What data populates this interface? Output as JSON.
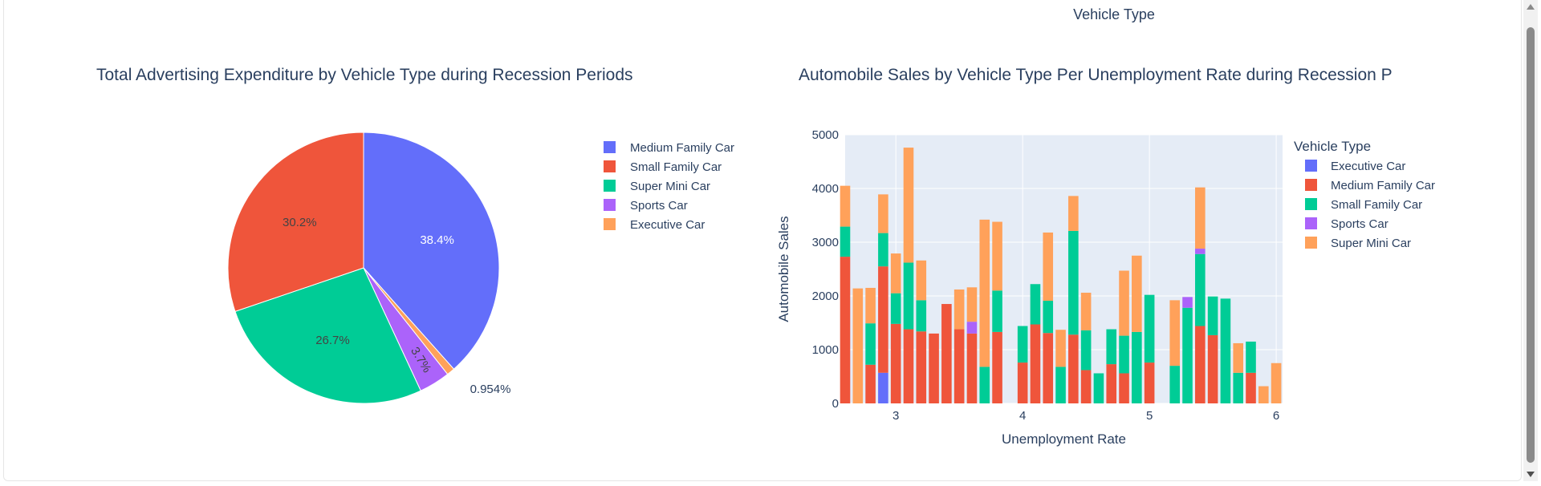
{
  "header": {
    "legend_group_title": "Vehicle Type"
  },
  "chart_data": [
    {
      "type": "pie",
      "title": "Total Advertising Expenditure by Vehicle Type during Recession Periods",
      "slices": [
        {
          "label": "Medium Family Car",
          "percent": 38.4,
          "text": "38.4%",
          "color": "#636efa"
        },
        {
          "label": "Executive Car",
          "percent": 0.954,
          "text": "0.954%",
          "color": "#ffa15a"
        },
        {
          "label": "Sports Car",
          "percent": 3.7,
          "text": "3.7%",
          "color": "#ab63fa"
        },
        {
          "label": "Super Mini Car",
          "percent": 26.7,
          "text": "26.7%",
          "color": "#00cc96"
        },
        {
          "label": "Small Family Car",
          "percent": 30.2,
          "text": "30.2%",
          "color": "#ef553b"
        }
      ],
      "legend_order": [
        "Medium Family Car",
        "Small Family Car",
        "Super Mini Car",
        "Sports Car",
        "Executive Car"
      ],
      "legend_placement": "right"
    },
    {
      "type": "bar",
      "stacked": true,
      "title": "Automobile Sales by Vehicle Type Per Unemployment Rate during Recession P",
      "xlabel": "Unemployment Rate",
      "ylabel": "Automobile Sales",
      "xlim": [
        2.6,
        6.05
      ],
      "ylim": [
        0,
        5000
      ],
      "xticks": [
        "3",
        "4",
        "5",
        "6"
      ],
      "xtick_values": [
        3,
        4,
        5,
        6
      ],
      "yticks": [
        "0",
        "1000",
        "2000",
        "3000",
        "4000",
        "5000"
      ],
      "ytick_values": [
        0,
        1000,
        2000,
        3000,
        4000,
        5000
      ],
      "grid": true,
      "legend_title": "Vehicle Type",
      "legend_placement": "right",
      "series": [
        {
          "name": "Executive Car",
          "color": "#636efa",
          "points": [
            [
              2.9,
              570
            ]
          ]
        },
        {
          "name": "Medium Family Car",
          "color": "#ef553b",
          "points": [
            [
              2.6,
              2730
            ],
            [
              2.8,
              720
            ],
            [
              2.9,
              1980
            ],
            [
              3.0,
              1480
            ],
            [
              3.1,
              1380
            ],
            [
              3.2,
              1340
            ],
            [
              3.3,
              1300
            ],
            [
              3.4,
              1850
            ],
            [
              3.5,
              1380
            ],
            [
              3.6,
              1300
            ],
            [
              3.8,
              1330
            ],
            [
              4.0,
              760
            ],
            [
              4.1,
              1470
            ],
            [
              4.2,
              1310
            ],
            [
              4.4,
              1280
            ],
            [
              4.5,
              620
            ],
            [
              4.7,
              730
            ],
            [
              4.8,
              560
            ],
            [
              5.0,
              760
            ],
            [
              5.4,
              1440
            ],
            [
              5.5,
              1270
            ],
            [
              5.8,
              570
            ]
          ]
        },
        {
          "name": "Small Family Car",
          "color": "#00cc96",
          "points": [
            [
              2.6,
              560
            ],
            [
              2.8,
              770
            ],
            [
              2.9,
              620
            ],
            [
              3.0,
              570
            ],
            [
              3.1,
              1240
            ],
            [
              3.2,
              580
            ],
            [
              3.7,
              680
            ],
            [
              3.8,
              770
            ],
            [
              4.0,
              680
            ],
            [
              4.1,
              750
            ],
            [
              4.2,
              600
            ],
            [
              4.3,
              680
            ],
            [
              4.4,
              1930
            ],
            [
              4.5,
              740
            ],
            [
              4.6,
              560
            ],
            [
              4.7,
              650
            ],
            [
              4.8,
              700
            ],
            [
              4.9,
              1330
            ],
            [
              5.0,
              1260
            ],
            [
              5.2,
              700
            ],
            [
              5.3,
              1780
            ],
            [
              5.4,
              1340
            ],
            [
              5.5,
              720
            ],
            [
              5.6,
              1950
            ],
            [
              5.7,
              570
            ],
            [
              5.8,
              580
            ]
          ]
        },
        {
          "name": "Sports Car",
          "color": "#ab63fa",
          "points": [
            [
              3.6,
              220
            ],
            [
              5.3,
              200
            ],
            [
              5.4,
              100
            ]
          ]
        },
        {
          "name": "Super Mini Car",
          "color": "#ffa15a",
          "points": [
            [
              2.6,
              760
            ],
            [
              2.7,
              2140
            ],
            [
              2.8,
              660
            ],
            [
              2.9,
              720
            ],
            [
              3.0,
              740
            ],
            [
              3.1,
              2140
            ],
            [
              3.2,
              740
            ],
            [
              3.5,
              740
            ],
            [
              3.6,
              640
            ],
            [
              3.7,
              2740
            ],
            [
              3.8,
              1280
            ],
            [
              4.2,
              1270
            ],
            [
              4.3,
              690
            ],
            [
              4.4,
              650
            ],
            [
              4.5,
              700
            ],
            [
              4.8,
              1210
            ],
            [
              4.9,
              1420
            ],
            [
              5.2,
              1220
            ],
            [
              5.4,
              1140
            ],
            [
              5.7,
              550
            ],
            [
              5.9,
              320
            ],
            [
              6.0,
              750
            ]
          ]
        }
      ]
    }
  ]
}
